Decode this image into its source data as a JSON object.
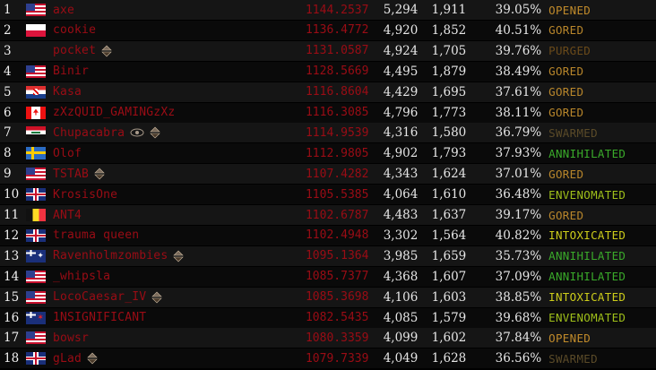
{
  "colors": {
    "name": "#9a0c15",
    "rating": "#9a0c15"
  },
  "rows": [
    {
      "rank": "1",
      "flag": "us",
      "name": "axe",
      "badges": [],
      "rating": "1144.2537",
      "wins": "5,294",
      "losses": "1,911",
      "pct": "39.05%",
      "status": "OPENED"
    },
    {
      "rank": "2",
      "flag": "pl",
      "name": "cookie",
      "badges": [],
      "rating": "1136.4772",
      "wins": "4,920",
      "losses": "1,852",
      "pct": "40.51%",
      "status": "GORED"
    },
    {
      "rank": "3",
      "flag": "",
      "name": "pocket",
      "badges": [
        "up-down-icon"
      ],
      "rating": "1131.0587",
      "wins": "4,924",
      "losses": "1,705",
      "pct": "39.76%",
      "status": "PURGED"
    },
    {
      "rank": "4",
      "flag": "us",
      "name": "Binir",
      "badges": [],
      "rating": "1128.5669",
      "wins": "4,495",
      "losses": "1,879",
      "pct": "38.49%",
      "status": "GORED"
    },
    {
      "rank": "5",
      "flag": "hr",
      "name": "Kasa",
      "badges": [],
      "rating": "1116.8604",
      "wins": "4,429",
      "losses": "1,695",
      "pct": "37.61%",
      "status": "GORED"
    },
    {
      "rank": "6",
      "flag": "ca",
      "name": "zXzQUID_GAMINGzXz",
      "badges": [],
      "rating": "1116.3085",
      "wins": "4,796",
      "losses": "1,773",
      "pct": "38.11%",
      "status": "GORED"
    },
    {
      "rank": "7",
      "flag": "iq",
      "name": "Chupacabra",
      "badges": [
        "eye-icon",
        "up-down-icon"
      ],
      "rating": "1114.9539",
      "wins": "4,316",
      "losses": "1,580",
      "pct": "36.79%",
      "status": "SWARMED"
    },
    {
      "rank": "8",
      "flag": "se",
      "name": "Olof",
      "badges": [],
      "rating": "1112.9805",
      "wins": "4,902",
      "losses": "1,793",
      "pct": "37.93%",
      "status": "ANNIHILATED"
    },
    {
      "rank": "9",
      "flag": "us",
      "name": "TSTAB",
      "badges": [
        "up-down-icon"
      ],
      "rating": "1107.4282",
      "wins": "4,343",
      "losses": "1,624",
      "pct": "37.01%",
      "status": "GORED"
    },
    {
      "rank": "10",
      "flag": "gb",
      "name": "KrosisOne",
      "badges": [],
      "rating": "1105.5385",
      "wins": "4,064",
      "losses": "1,610",
      "pct": "36.48%",
      "status": "ENVENOMATED"
    },
    {
      "rank": "11",
      "flag": "be",
      "name": "ANT4",
      "badges": [],
      "rating": "1102.6787",
      "wins": "4,483",
      "losses": "1,637",
      "pct": "39.17%",
      "status": "GORED"
    },
    {
      "rank": "12",
      "flag": "gb",
      "name": "trauma queen",
      "badges": [],
      "rating": "1102.4948",
      "wins": "3,302",
      "losses": "1,564",
      "pct": "40.82%",
      "status": "INTOXICATED"
    },
    {
      "rank": "13",
      "flag": "au",
      "name": "Ravenholmzombies",
      "badges": [
        "up-down-icon"
      ],
      "rating": "1095.1364",
      "wins": "3,985",
      "losses": "1,659",
      "pct": "35.73%",
      "status": "ANNIHILATED"
    },
    {
      "rank": "14",
      "flag": "us",
      "name": "_whipsla",
      "badges": [],
      "rating": "1085.7377",
      "wins": "4,368",
      "losses": "1,607",
      "pct": "37.09%",
      "status": "ANNIHILATED"
    },
    {
      "rank": "15",
      "flag": "us",
      "name": "LocoCaesar_IV",
      "badges": [
        "up-down-icon"
      ],
      "rating": "1085.3698",
      "wins": "4,106",
      "losses": "1,603",
      "pct": "38.85%",
      "status": "INTOXICATED"
    },
    {
      "rank": "16",
      "flag": "nz",
      "name": "1NSIGNIFICANT",
      "badges": [],
      "rating": "1082.5435",
      "wins": "4,085",
      "losses": "1,579",
      "pct": "39.68%",
      "status": "ENVENOMATED"
    },
    {
      "rank": "17",
      "flag": "us",
      "name": "bowsr",
      "badges": [],
      "rating": "1080.3359",
      "wins": "4,099",
      "losses": "1,602",
      "pct": "37.84%",
      "status": "OPENED"
    },
    {
      "rank": "18",
      "flag": "gb",
      "name": "gLad",
      "badges": [
        "up-down-icon"
      ],
      "rating": "1079.7339",
      "wins": "4,049",
      "losses": "1,628",
      "pct": "36.56%",
      "status": "SWARMED"
    }
  ]
}
